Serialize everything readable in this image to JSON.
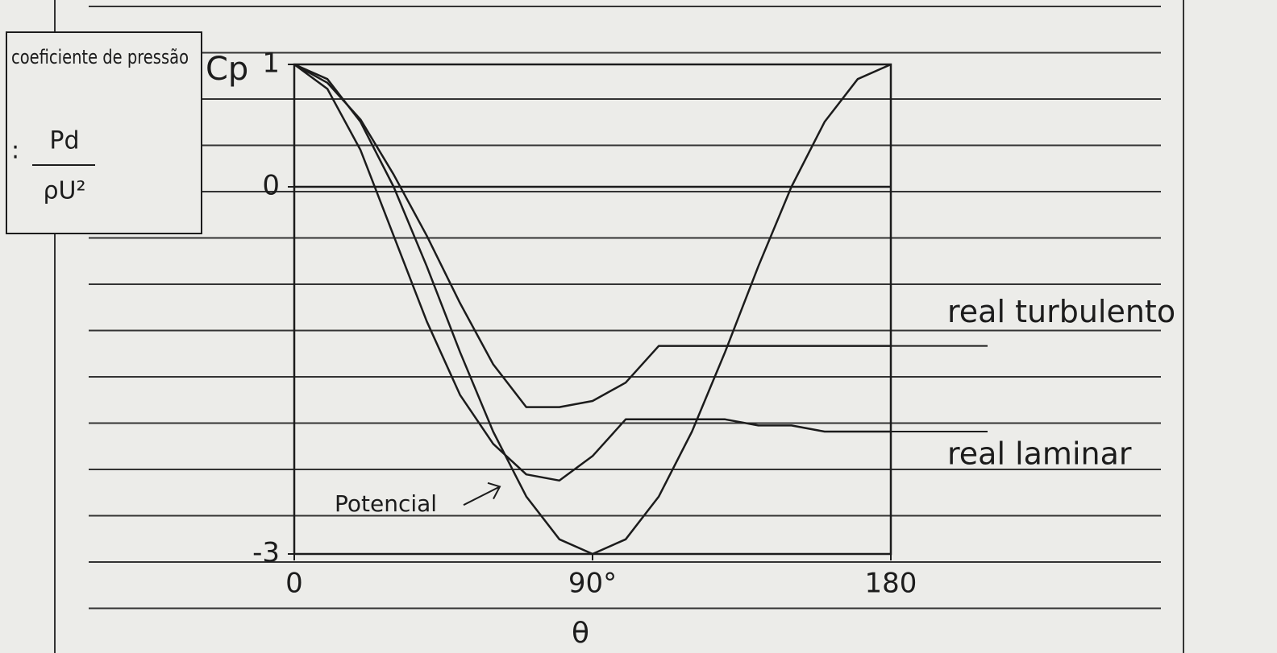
{
  "chart_data": {
    "type": "line",
    "ylabel": "coeficiente de pressão",
    "ylabel_formula": {
      "prefix": ":",
      "numerator": "Pd",
      "denominator": "ρU²"
    },
    "ylabel_symbol": "Cp",
    "xlabel": "θ",
    "x": [
      0,
      10,
      20,
      30,
      40,
      50,
      60,
      70,
      80,
      90,
      100,
      110,
      120,
      130,
      140,
      150,
      160,
      170,
      180
    ],
    "xlim": [
      0,
      180
    ],
    "xticks": [
      0,
      {
        "value": 90,
        "label": "90°"
      },
      180
    ],
    "ylim": [
      -3,
      1
    ],
    "yticks": [
      1,
      0,
      -3
    ],
    "series": [
      {
        "name": "Potencial",
        "color": "#1c1c1c",
        "values": [
          1,
          0.88,
          0.53,
          0,
          -0.65,
          -1.35,
          -2,
          -2.53,
          -2.88,
          -3,
          -2.88,
          -2.53,
          -2,
          -1.35,
          -0.65,
          0,
          0.53,
          0.88,
          1
        ]
      },
      {
        "name": "real laminar",
        "color": "#1c1c1c",
        "values": [
          1,
          0.8,
          0.3,
          -0.4,
          -1.1,
          -1.7,
          -2.1,
          -2.35,
          -2.4,
          -2.2,
          -1.9,
          -1.9,
          -1.9,
          -1.9,
          -1.95,
          -1.95,
          -2,
          -2,
          -2
        ]
      },
      {
        "name": "real turbulento",
        "color": "#1c1c1c",
        "values": [
          1,
          0.85,
          0.55,
          0.1,
          -0.4,
          -0.95,
          -1.45,
          -1.8,
          -1.8,
          -1.75,
          -1.6,
          -1.3,
          -1.3,
          -1.3,
          -1.3,
          -1.3,
          -1.3,
          -1.3,
          -1.3
        ]
      }
    ]
  }
}
